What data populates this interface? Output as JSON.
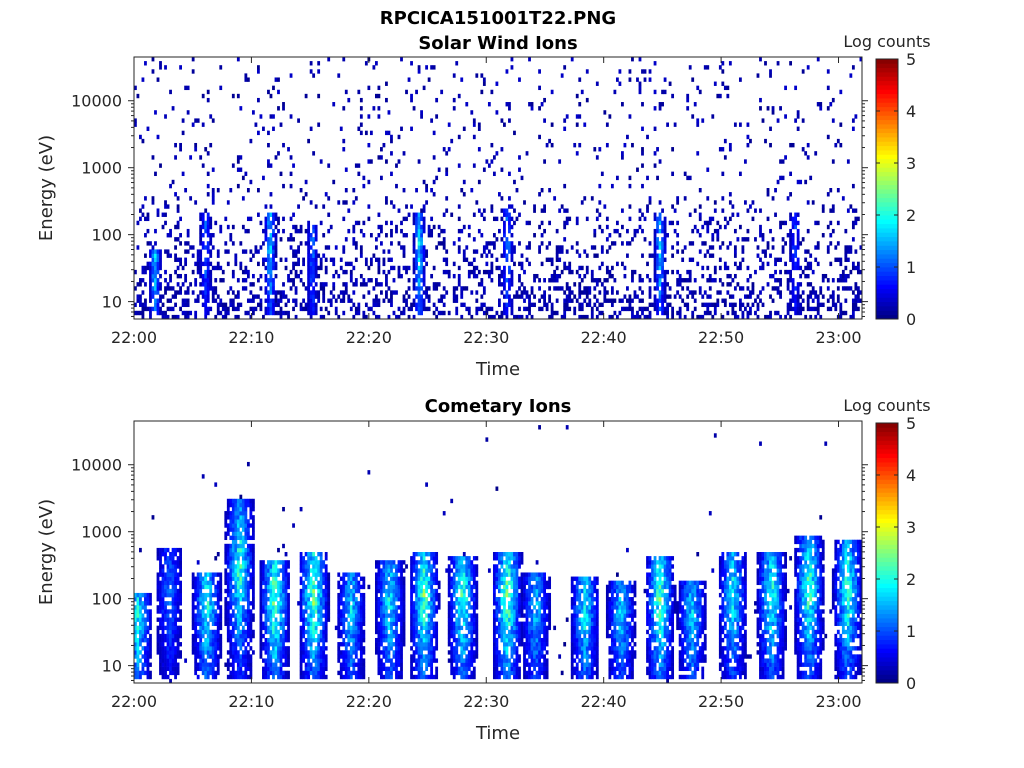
{
  "figure_title": "RPCICA151001T22.PNG",
  "chart_data": [
    {
      "type": "heatmap",
      "title": "Solar Wind Ions",
      "xlabel": "Time",
      "ylabel": "Energy (eV)",
      "x_ticks": [
        "22:00",
        "22:10",
        "22:20",
        "22:30",
        "22:40",
        "22:50",
        "23:00"
      ],
      "x_range_minutes": [
        0,
        62
      ],
      "y_scale": "log",
      "y_ticks": [
        "10",
        "100",
        "1000",
        "10000"
      ],
      "y_tick_values": [
        10,
        100,
        1000,
        10000
      ],
      "ylim": [
        5.5,
        45000
      ],
      "colorbar": {
        "label": "Log counts",
        "ticks": [
          "0",
          "1",
          "2",
          "3",
          "4",
          "5"
        ],
        "range": [
          0,
          5
        ],
        "colormap": "jet"
      },
      "bursts": [
        {
          "t": 1.8,
          "emax": 60,
          "peak": 1.8
        },
        {
          "t": 6.1,
          "emax": 200,
          "peak": 1.2
        },
        {
          "t": 11.6,
          "emax": 200,
          "peak": 1.8
        },
        {
          "t": 15.2,
          "emax": 150,
          "peak": 1.3
        },
        {
          "t": 24.3,
          "emax": 200,
          "peak": 1.9
        },
        {
          "t": 31.8,
          "emax": 250,
          "peak": 1.4
        },
        {
          "t": 44.8,
          "emax": 200,
          "peak": 1.7
        },
        {
          "t": 56.3,
          "emax": 200,
          "peak": 1.1
        }
      ]
    },
    {
      "type": "heatmap",
      "title": "Cometary Ions",
      "xlabel": "Time",
      "ylabel": "Energy (eV)",
      "x_ticks": [
        "22:00",
        "22:10",
        "22:20",
        "22:30",
        "22:40",
        "22:50",
        "23:00"
      ],
      "x_range_minutes": [
        0,
        62
      ],
      "y_scale": "log",
      "y_ticks": [
        "10",
        "100",
        "1000",
        "10000"
      ],
      "y_tick_values": [
        10,
        100,
        1000,
        10000
      ],
      "ylim": [
        5.5,
        45000
      ],
      "colorbar": {
        "label": "Log counts",
        "ticks": [
          "0",
          "1",
          "2",
          "3",
          "4",
          "5"
        ],
        "range": [
          0,
          5
        ],
        "colormap": "jet"
      },
      "bursts": [
        {
          "t": 0.3,
          "emax": 120,
          "peak": 2.0
        },
        {
          "t": 3.0,
          "emax": 550,
          "peak": 1.3
        },
        {
          "t": 6.2,
          "emax": 250,
          "peak": 2.1
        },
        {
          "t": 9.0,
          "emax": 3200,
          "peak": 2.3
        },
        {
          "t": 12.0,
          "emax": 400,
          "peak": 2.5
        },
        {
          "t": 15.3,
          "emax": 500,
          "peak": 2.5
        },
        {
          "t": 18.5,
          "emax": 250,
          "peak": 1.8
        },
        {
          "t": 21.8,
          "emax": 350,
          "peak": 2.0
        },
        {
          "t": 24.7,
          "emax": 500,
          "peak": 2.4
        },
        {
          "t": 28.0,
          "emax": 450,
          "peak": 2.3
        },
        {
          "t": 31.8,
          "emax": 500,
          "peak": 2.6
        },
        {
          "t": 34.2,
          "emax": 250,
          "peak": 1.7
        },
        {
          "t": 38.4,
          "emax": 200,
          "peak": 2.0
        },
        {
          "t": 41.5,
          "emax": 180,
          "peak": 1.8
        },
        {
          "t": 44.8,
          "emax": 450,
          "peak": 2.4
        },
        {
          "t": 47.5,
          "emax": 180,
          "peak": 1.8
        },
        {
          "t": 51.0,
          "emax": 500,
          "peak": 2.0
        },
        {
          "t": 54.3,
          "emax": 500,
          "peak": 2.2
        },
        {
          "t": 57.5,
          "emax": 900,
          "peak": 2.4
        },
        {
          "t": 60.8,
          "emax": 800,
          "peak": 2.3
        }
      ]
    }
  ]
}
